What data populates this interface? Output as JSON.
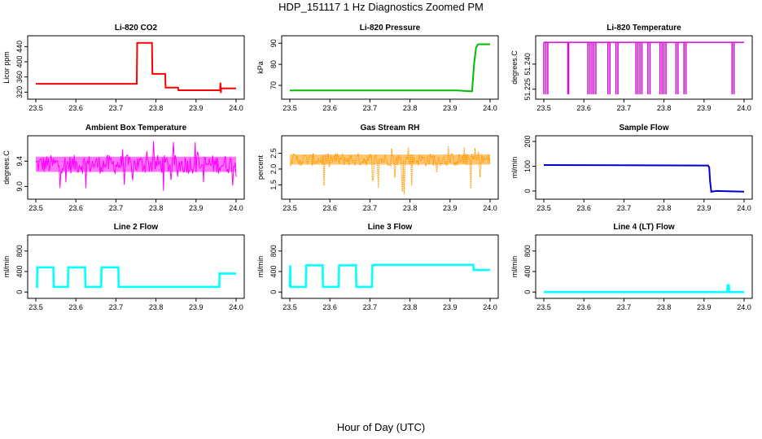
{
  "title": "HDP_151117  1 Hz Diagnostics Zoomed PM",
  "xlabel": "Hour of Day (UTC)",
  "chart_data": [
    {
      "type": "line",
      "title": "Li-820 CO2",
      "ylabel": "Licor ppm",
      "color": "#ff0000",
      "xlim": [
        23.5,
        24.0
      ],
      "ylim": [
        310,
        460
      ],
      "xticks": [
        "23.5",
        "23.6",
        "23.7",
        "23.8",
        "23.9",
        "24.0"
      ],
      "yticks": [
        {
          "v": 320,
          "label": "320"
        },
        {
          "v": 360,
          "label": "360"
        },
        {
          "v": 400,
          "label": "400"
        },
        {
          "v": 440,
          "label": "440"
        }
      ],
      "series": [
        {
          "x": [
            23.5,
            23.752,
            23.753,
            23.79,
            23.791,
            23.823,
            23.824,
            23.855,
            23.856,
            23.96,
            23.961,
            23.962,
            23.963,
            23.97,
            23.971,
            24.0
          ],
          "y": [
            342,
            342,
            450,
            450,
            368,
            368,
            332,
            332,
            325,
            325,
            345,
            318,
            330,
            330,
            330,
            330
          ]
        }
      ]
    },
    {
      "type": "line",
      "title": "Li-820 Pressure",
      "ylabel": "kPa",
      "color": "#00bb00",
      "xlim": [
        23.5,
        24.0
      ],
      "ylim": [
        65,
        92
      ],
      "xticks": [
        "23.5",
        "23.6",
        "23.7",
        "23.8",
        "23.9",
        "24.0"
      ],
      "yticks": [
        {
          "v": 70,
          "label": "70"
        },
        {
          "v": 80,
          "label": "80"
        },
        {
          "v": 90,
          "label": "90"
        }
      ],
      "series": [
        {
          "x": [
            23.5,
            23.92,
            23.94,
            23.955,
            23.96,
            23.965,
            23.97,
            24.0
          ],
          "y": [
            67.6,
            67.6,
            67.3,
            67.2,
            80,
            88,
            89.5,
            89.5
          ]
        }
      ]
    },
    {
      "type": "line",
      "title": "Li-820 Temperature",
      "ylabel": "degrees.C",
      "color": "#dd00dd",
      "xlim": [
        23.5,
        24.0
      ],
      "ylim": [
        51.221,
        51.255
      ],
      "xticks": [
        "23.5",
        "23.6",
        "23.7",
        "23.8",
        "23.9",
        "24.0"
      ],
      "yticks": [
        {
          "v": 51.225,
          "label": "51.225"
        },
        {
          "v": 51.24,
          "label": "51.240"
        }
      ],
      "drops": [
        23.5,
        23.505,
        23.51,
        23.56,
        23.562,
        23.61,
        23.615,
        23.62,
        23.625,
        23.63,
        23.66,
        23.665,
        23.68,
        23.685,
        23.73,
        23.735,
        23.74,
        23.745,
        23.76,
        23.765,
        23.79,
        23.795,
        23.8,
        23.805,
        23.83,
        23.835,
        23.85,
        23.855,
        23.97,
        23.975
      ],
      "series": [
        {
          "baseline": 51.253,
          "low": 51.222
        }
      ]
    },
    {
      "type": "line",
      "title": "Ambient Box Temperature",
      "ylabel": "degrees.C",
      "color": "#ff00ff",
      "xlim": [
        23.5,
        24.0
      ],
      "ylim": [
        8.85,
        9.75
      ],
      "xticks": [
        "23.5",
        "23.6",
        "23.7",
        "23.8",
        "23.9",
        "24.0"
      ],
      "yticks": [
        {
          "v": 9.0,
          "label": "9.0"
        },
        {
          "v": 9.4,
          "label": "9.4"
        }
      ],
      "series": [
        {
          "center": 9.35,
          "band_low": 9.2,
          "band_high": 9.5,
          "spike_low": 8.9,
          "spike_high": 9.72
        }
      ]
    },
    {
      "type": "scatter",
      "title": "Gas Stream RH",
      "ylabel": "percent",
      "color": "#ff9900",
      "xlim": [
        23.5,
        24.0
      ],
      "ylim": [
        1.15,
        2.95
      ],
      "xticks": [
        "23.5",
        "23.6",
        "23.7",
        "23.8",
        "23.9",
        "24.0"
      ],
      "yticks": [
        {
          "v": 1.5,
          "label": "1.5"
        },
        {
          "v": 2.0,
          "label": "2.0"
        },
        {
          "v": 2.5,
          "label": "2.5"
        }
      ],
      "series": [
        {
          "center": 2.3,
          "band_low": 2.1,
          "band_high": 2.5,
          "spike_low": 1.2,
          "spike_high": 2.75
        }
      ]
    },
    {
      "type": "line",
      "title": "Sample Flow",
      "ylabel": "ml/min",
      "color": "#0000cc",
      "xlim": [
        23.5,
        24.0
      ],
      "ylim": [
        -20,
        210
      ],
      "xticks": [
        "23.5",
        "23.6",
        "23.7",
        "23.8",
        "23.9",
        "24.0"
      ],
      "yticks": [
        {
          "v": 0,
          "label": "0"
        },
        {
          "v": 100,
          "label": "100"
        },
        {
          "v": 200,
          "label": "200"
        }
      ],
      "series": [
        {
          "x": [
            23.5,
            23.91,
            23.913,
            23.915,
            23.918,
            23.93,
            24.0
          ],
          "y": [
            105,
            103,
            95,
            40,
            -3,
            0,
            -3
          ]
        }
      ]
    },
    {
      "type": "line",
      "title": "Line 2 Flow",
      "ylabel": "ml/min",
      "color": "#00ffff",
      "xlim": [
        23.5,
        24.0
      ],
      "ylim": [
        -60,
        1050
      ],
      "xticks": [
        "23.5",
        "23.6",
        "23.7",
        "23.8",
        "23.9",
        "24.0"
      ],
      "yticks": [
        {
          "v": 0,
          "label": "0"
        },
        {
          "v": 400,
          "label": "400"
        },
        {
          "v": 800,
          "label": "800"
        }
      ],
      "series": [
        {
          "x": [
            23.5,
            23.503,
            23.504,
            23.544,
            23.545,
            23.58,
            23.581,
            23.623,
            23.624,
            23.663,
            23.664,
            23.706,
            23.707,
            23.958,
            23.959,
            24.0
          ],
          "y": [
            100,
            100,
            480,
            480,
            100,
            100,
            480,
            480,
            100,
            100,
            480,
            480,
            100,
            100,
            360,
            360
          ]
        }
      ]
    },
    {
      "type": "line",
      "title": "Line 3 Flow",
      "ylabel": "ml/min",
      "color": "#00ffff",
      "xlim": [
        23.5,
        24.0
      ],
      "ylim": [
        -60,
        1050
      ],
      "xticks": [
        "23.5",
        "23.6",
        "23.7",
        "23.8",
        "23.9",
        "24.0"
      ],
      "yticks": [
        {
          "v": 0,
          "label": "0"
        },
        {
          "v": 400,
          "label": "400"
        },
        {
          "v": 800,
          "label": "800"
        }
      ],
      "series": [
        {
          "x": [
            23.5,
            23.501,
            23.502,
            23.54,
            23.541,
            23.582,
            23.583,
            23.622,
            23.623,
            23.665,
            23.666,
            23.705,
            23.706,
            23.71,
            23.711,
            23.958,
            23.959,
            24.0
          ],
          "y": [
            100,
            520,
            100,
            100,
            520,
            520,
            100,
            100,
            520,
            520,
            100,
            100,
            520,
            520,
            530,
            530,
            430,
            430
          ]
        }
      ]
    },
    {
      "type": "line",
      "title": "Line 4 (LT) Flow",
      "ylabel": "ml/min",
      "color": "#00ffff",
      "xlim": [
        23.5,
        24.0
      ],
      "ylim": [
        -60,
        1050
      ],
      "xticks": [
        "23.5",
        "23.6",
        "23.7",
        "23.8",
        "23.9",
        "24.0"
      ],
      "yticks": [
        {
          "v": 0,
          "label": "0"
        },
        {
          "v": 400,
          "label": "400"
        },
        {
          "v": 800,
          "label": "800"
        }
      ],
      "series": [
        {
          "x": [
            23.5,
            23.958,
            23.959,
            23.962,
            23.963,
            24.0
          ],
          "y": [
            0,
            0,
            130,
            130,
            0,
            0
          ]
        }
      ]
    }
  ]
}
